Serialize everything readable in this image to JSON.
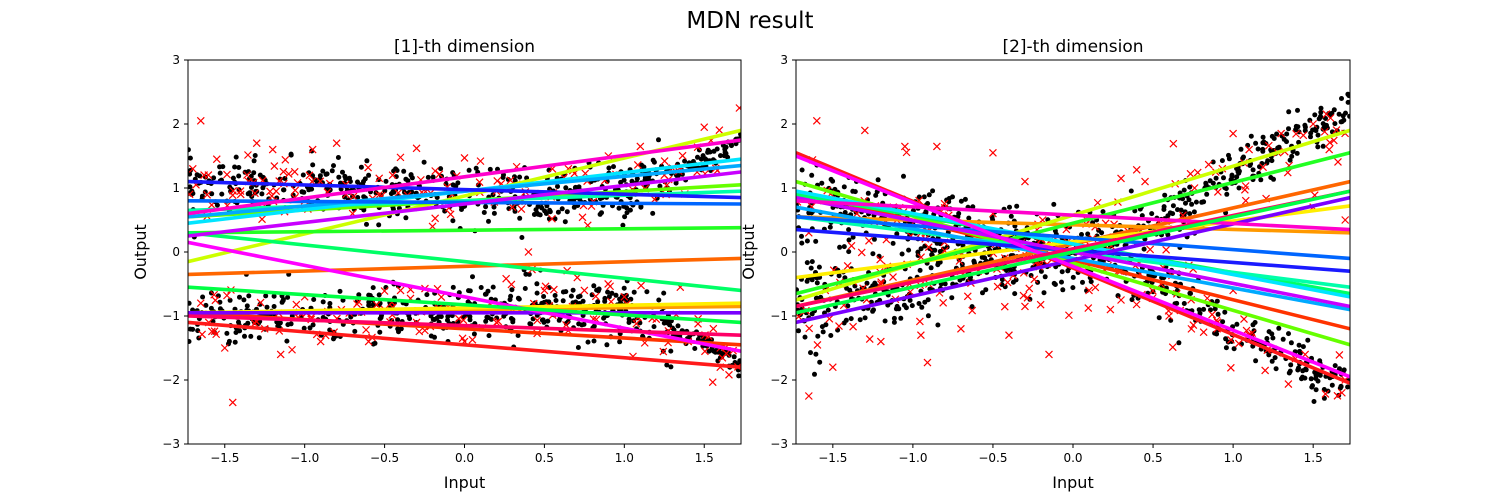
{
  "suptitle": "MDN result",
  "chart_data": [
    {
      "type": "scatter",
      "title": "[1]-th dimension",
      "xlabel": "Input",
      "ylabel": "Output",
      "xlim": [
        -1.73,
        1.73
      ],
      "ylim": [
        -3,
        3
      ],
      "xticks": [
        -1.5,
        -1.0,
        -0.5,
        0.0,
        0.5,
        1.0,
        1.5
      ],
      "xtick_labels": [
        "−1.5",
        "−1.0",
        "−0.5",
        "0.0",
        "0.5",
        "1.0",
        "1.5"
      ],
      "yticks": [
        -3,
        -2,
        -1,
        0,
        1,
        2,
        3
      ],
      "ytick_labels": [
        "−3",
        "−2",
        "−1",
        "0",
        "1",
        "2",
        "3"
      ],
      "grid": false,
      "data_scatter": {
        "marker": "dot",
        "color": "#000000",
        "description": "two noisy branches: upper near y=1, lower near y=-1, converging toward |y|≈1.8 at the right edge",
        "branches": [
          {
            "x": [
              -1.7,
              -1.0,
              -0.5,
              0.0,
              0.5,
              1.0,
              1.5,
              1.73
            ],
            "y": [
              1.0,
              1.0,
              0.95,
              0.9,
              0.85,
              0.95,
              1.4,
              1.8
            ],
            "spread": 0.22
          },
          {
            "x": [
              -1.7,
              -1.0,
              -0.5,
              0.0,
              0.5,
              1.0,
              1.5,
              1.73
            ],
            "y": [
              -1.0,
              -1.05,
              -1.0,
              -0.95,
              -0.8,
              -0.95,
              -1.4,
              -1.8
            ],
            "spread": 0.22
          }
        ]
      },
      "sample_scatter": {
        "marker": "x",
        "color": "#ff0000",
        "points": [
          [
            -1.65,
            2.05
          ],
          [
            -1.45,
            -2.35
          ],
          [
            -1.3,
            1.7
          ],
          [
            -1.2,
            1.6
          ],
          [
            -0.95,
            1.6
          ],
          [
            -0.8,
            1.7
          ],
          [
            -0.3,
            1.62
          ],
          [
            0.0,
            1.47
          ],
          [
            0.1,
            1.42
          ],
          [
            0.4,
            0.0
          ],
          [
            0.55,
            1.3
          ],
          [
            0.65,
            1.3
          ],
          [
            0.75,
            -0.6
          ],
          [
            0.9,
            1.5
          ],
          [
            1.0,
            -0.7
          ],
          [
            1.1,
            1.65
          ],
          [
            1.35,
            -0.55
          ],
          [
            1.5,
            1.95
          ],
          [
            1.72,
            2.25
          ],
          [
            -1.7,
            1.3
          ],
          [
            -1.55,
            1.45
          ],
          [
            -1.6,
            -1.1
          ],
          [
            -1.5,
            -1.5
          ],
          [
            -1.25,
            -1.2
          ],
          [
            -1.15,
            -1.6
          ],
          [
            -0.9,
            -1.4
          ],
          [
            -0.6,
            -1.4
          ],
          [
            -0.5,
            -0.9
          ],
          [
            -0.3,
            -1.1
          ],
          [
            0.0,
            -1.4
          ],
          [
            0.2,
            -1.1
          ],
          [
            0.6,
            -0.9
          ],
          [
            1.2,
            -1.05
          ],
          [
            1.4,
            -1.4
          ],
          [
            1.6,
            -1.8
          ],
          [
            -1.4,
            0.9
          ],
          [
            -1.0,
            0.8
          ],
          [
            -0.7,
            0.6
          ],
          [
            -0.2,
            0.4
          ],
          [
            0.3,
            0.7
          ],
          [
            -1.68,
            1.05
          ],
          [
            -1.35,
            1.1
          ],
          [
            -0.45,
            1.2
          ],
          [
            0.2,
            0.95
          ],
          [
            1.25,
            1.2
          ],
          [
            -1.65,
            -0.8
          ],
          [
            -1.0,
            -0.7
          ],
          [
            -0.4,
            -0.6
          ],
          [
            0.5,
            -0.6
          ],
          [
            1.6,
            -1.5
          ]
        ]
      },
      "component_lines": [
        {
          "color": "#ff1a1a",
          "y": [
            -1.1,
            -1.8
          ]
        },
        {
          "color": "#ff3300",
          "y": [
            -0.95,
            -1.45
          ]
        },
        {
          "color": "#ff6600",
          "y": [
            -0.35,
            -0.1
          ]
        },
        {
          "color": "#ff9900",
          "y": [
            -0.95,
            -0.85
          ]
        },
        {
          "color": "#ffee00",
          "y": [
            -0.95,
            -0.8
          ]
        },
        {
          "color": "#ccff00",
          "y": [
            -0.15,
            1.9
          ]
        },
        {
          "color": "#66ff00",
          "y": [
            0.55,
            1.05
          ]
        },
        {
          "color": "#22ff22",
          "y": [
            0.3,
            0.38
          ]
        },
        {
          "color": "#00ff66",
          "y": [
            0.3,
            -0.6
          ]
        },
        {
          "color": "#00ffaa",
          "y": [
            0.65,
            0.95
          ]
        },
        {
          "color": "#00e5ff",
          "y": [
            0.45,
            1.45
          ]
        },
        {
          "color": "#00aaff",
          "y": [
            0.55,
            1.35
          ]
        },
        {
          "color": "#0066ff",
          "y": [
            0.8,
            0.75
          ]
        },
        {
          "color": "#1a1aff",
          "y": [
            1.1,
            0.85
          ]
        },
        {
          "color": "#7a00ff",
          "y": [
            -0.95,
            -0.95
          ]
        },
        {
          "color": "#c800ff",
          "y": [
            0.25,
            1.25
          ]
        },
        {
          "color": "#ff00ff",
          "y": [
            0.15,
            -1.55
          ]
        },
        {
          "color": "#ff00cc",
          "y": [
            0.6,
            1.75
          ]
        },
        {
          "color": "#ff0066",
          "y": [
            -1.0,
            -1.3
          ]
        },
        {
          "color": "#00ff44",
          "y": [
            -0.55,
            -1.1
          ]
        }
      ]
    },
    {
      "type": "scatter",
      "title": "[2]-th dimension",
      "xlabel": "Input",
      "ylabel": "Output",
      "xlim": [
        -1.73,
        1.73
      ],
      "ylim": [
        -3,
        3
      ],
      "xticks": [
        -1.5,
        -1.0,
        -0.5,
        0.0,
        0.5,
        1.0,
        1.5
      ],
      "xtick_labels": [
        "−1.5",
        "−1.0",
        "−0.5",
        "0.0",
        "0.5",
        "1.0",
        "1.5"
      ],
      "yticks": [
        -3,
        -2,
        -1,
        0,
        1,
        2,
        3
      ],
      "ytick_labels": [
        "−3",
        "−2",
        "−1",
        "0",
        "1",
        "2",
        "3"
      ],
      "grid": false,
      "data_scatter": {
        "marker": "dot",
        "color": "#000000",
        "description": "two noisy sinusoid-like branches crossing near x=0: one rising to 2.1, one falling to -2.1; noise largest on the left",
        "branches": [
          {
            "x": [
              -1.7,
              -1.2,
              -0.7,
              -0.3,
              0.0,
              0.5,
              1.0,
              1.5,
              1.73
            ],
            "y": [
              -0.8,
              -0.6,
              -0.3,
              -0.1,
              0.0,
              0.4,
              1.2,
              1.9,
              2.1
            ],
            "spread": 0.35
          },
          {
            "x": [
              -1.7,
              -1.2,
              -0.7,
              -0.3,
              0.0,
              0.5,
              1.0,
              1.5,
              1.73
            ],
            "y": [
              0.8,
              0.6,
              0.3,
              0.1,
              0.0,
              -0.4,
              -1.2,
              -1.9,
              -2.1
            ],
            "spread": 0.35
          }
        ]
      },
      "sample_scatter": {
        "marker": "x",
        "color": "#ff0000",
        "points": [
          [
            -1.65,
            -2.25
          ],
          [
            -1.6,
            2.05
          ],
          [
            -1.3,
            1.9
          ],
          [
            -1.05,
            1.65
          ],
          [
            -0.85,
            1.65
          ],
          [
            -0.5,
            1.55
          ],
          [
            -0.3,
            1.1
          ],
          [
            0.3,
            1.15
          ],
          [
            0.45,
            1.1
          ],
          [
            1.0,
            1.85
          ],
          [
            1.1,
            1.6
          ],
          [
            1.3,
            1.85
          ],
          [
            1.5,
            2.0
          ],
          [
            1.6,
            1.6
          ],
          [
            -1.5,
            -1.8
          ],
          [
            -1.2,
            -1.4
          ],
          [
            -0.95,
            -1.3
          ],
          [
            -0.7,
            -1.2
          ],
          [
            -0.4,
            -1.3
          ],
          [
            -0.3,
            -0.85
          ],
          [
            0.1,
            -0.6
          ],
          [
            0.3,
            -0.75
          ],
          [
            0.6,
            -1.0
          ],
          [
            0.9,
            -1.2
          ],
          [
            1.2,
            -1.85
          ],
          [
            1.45,
            -1.6
          ],
          [
            1.7,
            -2.0
          ],
          [
            -0.15,
            -1.6
          ],
          [
            -1.35,
            0.6
          ],
          [
            -1.1,
            0.5
          ],
          [
            -0.6,
            0.4
          ],
          [
            -0.2,
            0.2
          ],
          [
            0.2,
            0.1
          ],
          [
            0.7,
            0.5
          ],
          [
            1.5,
            0.7
          ],
          [
            1.7,
            0.5
          ],
          [
            -1.65,
            0.3
          ],
          [
            -1.45,
            -0.5
          ],
          [
            -0.9,
            -0.5
          ],
          [
            -0.5,
            0.6
          ],
          [
            0.55,
            -0.5
          ],
          [
            1.0,
            -0.6
          ]
        ]
      },
      "component_lines": [
        {
          "color": "#ff1a1a",
          "y": [
            1.55,
            -2.05
          ]
        },
        {
          "color": "#ff3300",
          "y": [
            0.95,
            -1.2
          ]
        },
        {
          "color": "#ff6600",
          "y": [
            -0.85,
            1.1
          ]
        },
        {
          "color": "#ff9900",
          "y": [
            0.55,
            0.3
          ]
        },
        {
          "color": "#ffee00",
          "y": [
            -0.4,
            0.72
          ]
        },
        {
          "color": "#ccff00",
          "y": [
            -0.75,
            1.9
          ]
        },
        {
          "color": "#66ff00",
          "y": [
            1.1,
            -1.45
          ]
        },
        {
          "color": "#22ff22",
          "y": [
            -0.65,
            1.55
          ]
        },
        {
          "color": "#00ff66",
          "y": [
            0.9,
            -0.65
          ]
        },
        {
          "color": "#00ffaa",
          "y": [
            0.55,
            -0.55
          ]
        },
        {
          "color": "#00e5ff",
          "y": [
            0.95,
            -0.7
          ]
        },
        {
          "color": "#00aaff",
          "y": [
            0.7,
            -0.9
          ]
        },
        {
          "color": "#0066ff",
          "y": [
            0.55,
            -0.1
          ]
        },
        {
          "color": "#1a1aff",
          "y": [
            0.35,
            -0.3
          ]
        },
        {
          "color": "#7a00ff",
          "y": [
            -1.1,
            0.85
          ]
        },
        {
          "color": "#c800ff",
          "y": [
            0.85,
            -0.85
          ]
        },
        {
          "color": "#ff00ff",
          "y": [
            1.5,
            -1.95
          ]
        },
        {
          "color": "#ff00cc",
          "y": [
            0.8,
            0.35
          ]
        },
        {
          "color": "#ff0066",
          "y": [
            -0.85,
            0.95
          ]
        },
        {
          "color": "#00ff44",
          "y": [
            -0.95,
            0.95
          ]
        }
      ]
    }
  ]
}
